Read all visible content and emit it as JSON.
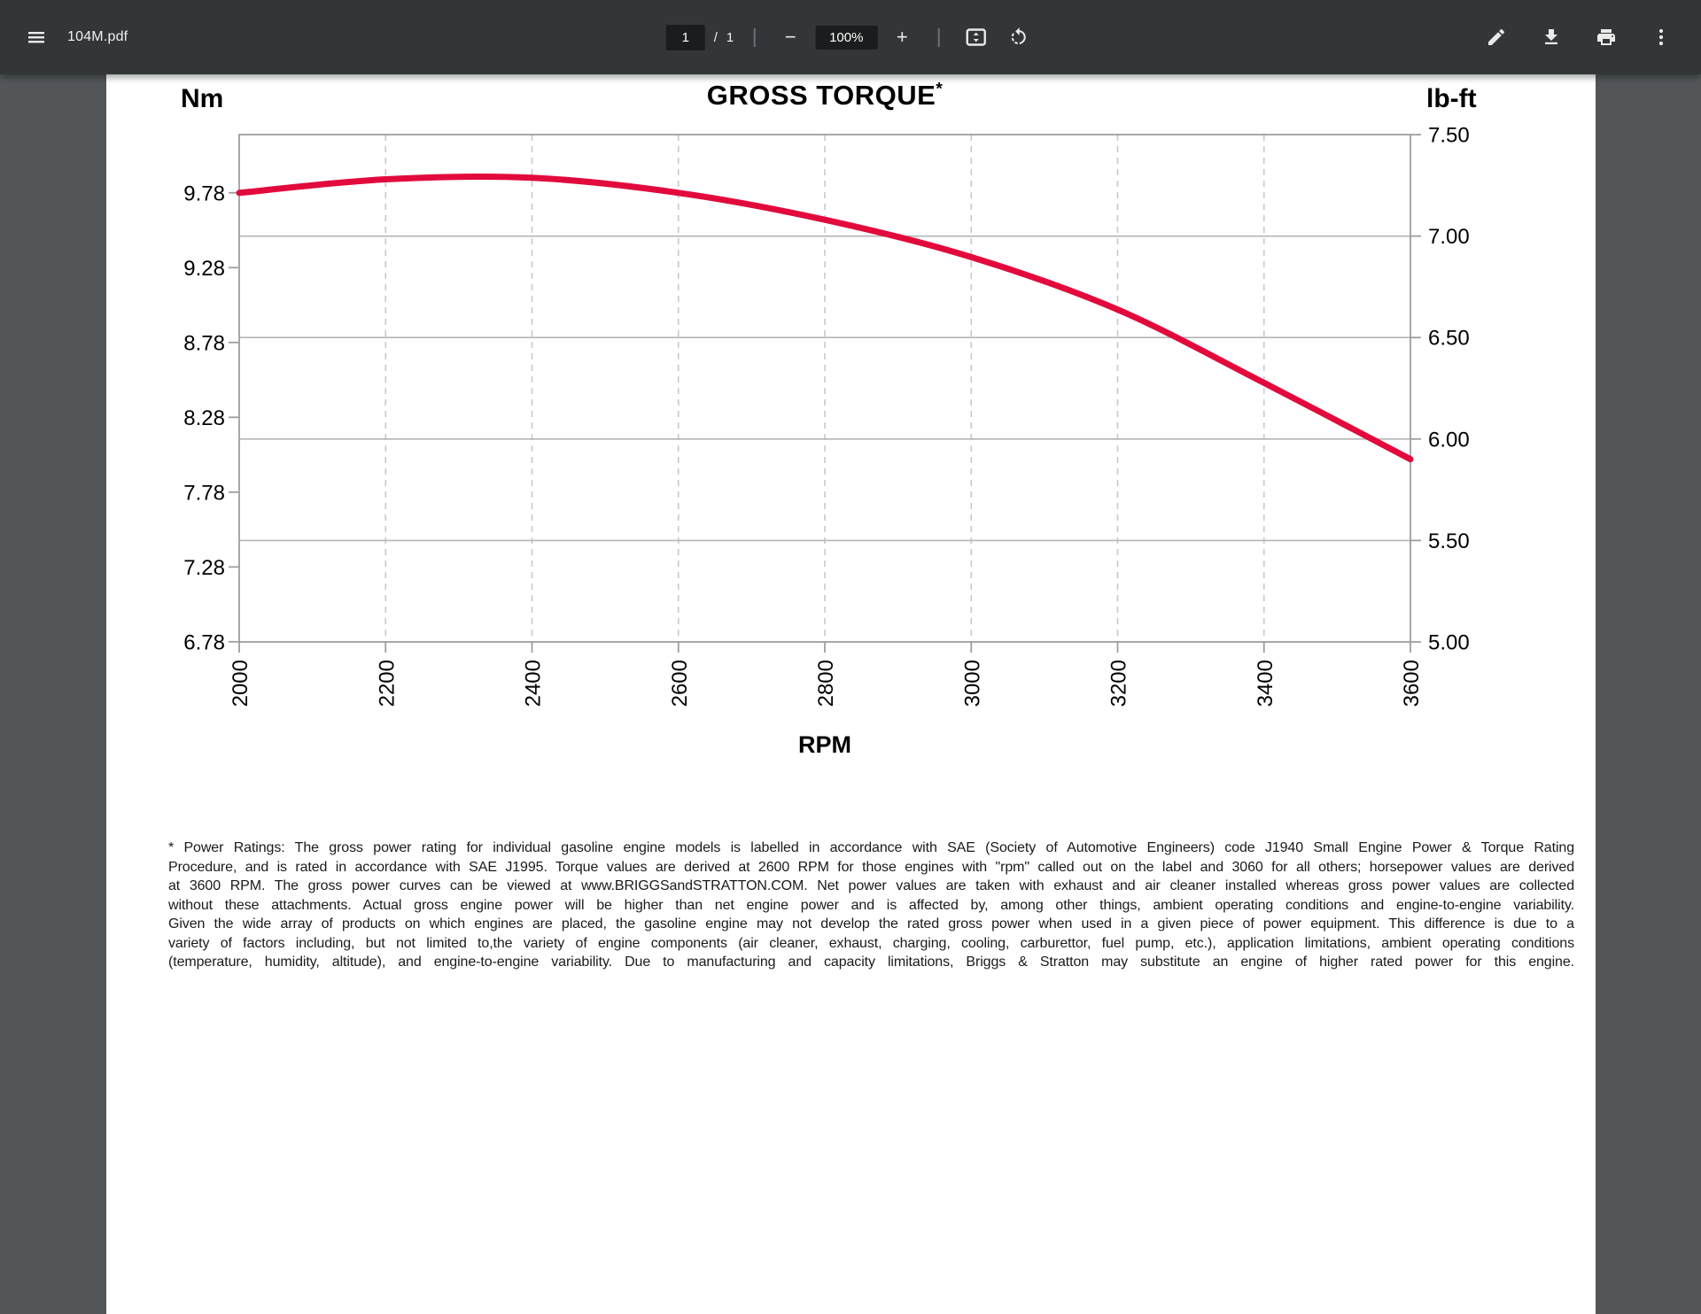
{
  "toolbar": {
    "title": "104M.pdf",
    "menu_icon": "hamburger-menu",
    "page": {
      "current": "1",
      "separator": "/",
      "total": "1"
    },
    "zoom": {
      "out_label": "−",
      "level": "100%",
      "in_label": "+"
    },
    "icons": {
      "fit": "fit-to-page",
      "rotate": "rotate-counterclockwise",
      "annotate": "pencil",
      "download": "download-arrow",
      "print": "printer",
      "more": "kebab-vertical-dots"
    }
  },
  "colors": {
    "toolbar_bg": "#323639",
    "viewer_bg": "#525659",
    "page_bg": "#ffffff",
    "curve_red": "#e20a3c",
    "grid_solid": "#b5b5b5",
    "grid_dashed": "#c9c9c9",
    "frame": "#9e9e9e"
  },
  "chart_data": {
    "type": "line",
    "title": "GROSS TORQUE",
    "title_marker": "*",
    "y_left_label": "Nm",
    "y_right_label": "lb-ft",
    "x_label": "RPM",
    "x_ticks": [
      2000,
      2200,
      2400,
      2600,
      2800,
      3000,
      3200,
      3400,
      3600
    ],
    "y_left_ticks": [
      "9.78",
      "9.28",
      "8.78",
      "8.28",
      "7.78",
      "7.28",
      "6.78"
    ],
    "y_right_ticks": [
      "7.50",
      "7.00",
      "6.50",
      "6.00",
      "5.50",
      "5.00"
    ],
    "x_range": [
      2000,
      3600
    ],
    "y_left_range_nm": [
      6.779,
      10.169
    ],
    "y_right_range_lbft": [
      5.0,
      7.5
    ],
    "grid": {
      "vertical": "dashed at each 200 RPM",
      "horizontal": "solid at each 0.50 lb-ft"
    },
    "legend": "none",
    "series": [
      {
        "name": "Gross Torque",
        "color": "#e20a3c",
        "points": [
          [
            2000,
            9.78
          ],
          [
            2200,
            9.87
          ],
          [
            2400,
            9.88
          ],
          [
            2600,
            9.78
          ],
          [
            2800,
            9.6
          ],
          [
            3000,
            9.35
          ],
          [
            3200,
            9.0
          ],
          [
            3400,
            8.51
          ],
          [
            3600,
            8.0
          ]
        ]
      }
    ]
  },
  "footnote": {
    "lines": [
      "* Power Ratings: The gross power rating for individual gasoline engine models is labelled in accordance with SAE (Society of Automotive Engineers) code J1940 Small Engine Power & Torque Rating",
      "Procedure, and is rated in accordance with SAE J1995. Torque values are derived at 2600 RPM for those engines with \"rpm\" called out on the label and 3060 for all others; horsepower values are derived",
      "at 3600 RPM. The gross power curves can be viewed at www.BRIGGSandSTRATTON.COM. Net power values are taken with exhaust and air cleaner installed whereas gross power values are collected",
      "without these attachments. Actual gross engine power will be higher than net engine power and is affected by, among other things, ambient operating conditions and engine-to-engine variability.",
      "Given the wide array of products on which engines are placed, the gasoline engine may not develop the rated gross power when used in a given piece of power equipment. This difference is due to a",
      "variety of factors including, but not limited to,the variety of engine components (air cleaner, exhaust, charging, cooling, carburettor, fuel pump, etc.), application limitations, ambient operating conditions",
      "(temperature, humidity, altitude), and engine-to-engine variability. Due to manufacturing and capacity limitations, Briggs & Stratton may substitute an engine of higher rated power for this engine."
    ]
  }
}
